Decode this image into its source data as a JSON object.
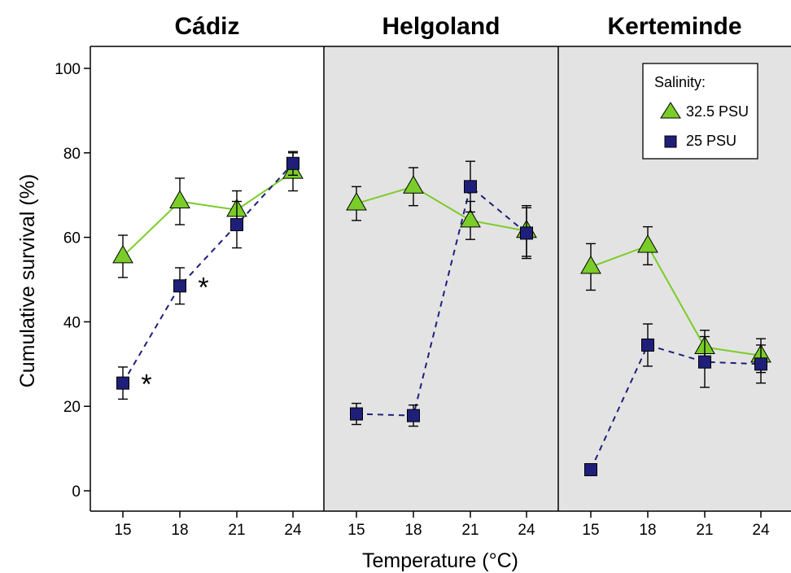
{
  "chart_data": {
    "type": "line",
    "xlabel": "Temperature (°C)",
    "ylabel": "Cumulative survival (%)",
    "ylim": [
      0,
      100
    ],
    "yticks": [
      0,
      20,
      40,
      60,
      80,
      100
    ],
    "x": [
      15,
      18,
      21,
      24
    ],
    "x_tick_labels": [
      "15",
      "18",
      "21",
      "24"
    ],
    "legend": {
      "title": "Salinity:",
      "placement": "top-right",
      "entries": [
        {
          "label": "32.5 PSU",
          "marker": "triangle",
          "line": "solid",
          "color": "#7acc29"
        },
        {
          "label": "25 PSU",
          "marker": "square",
          "line": "dashed",
          "color": "#1f1f7a"
        }
      ]
    },
    "panels": [
      {
        "title": "Cádiz",
        "background": "#ffffff",
        "series": [
          {
            "name": "32.5 PSU",
            "values": [
              55.5,
              68.5,
              66.5,
              75.5
            ],
            "errors": [
              5.0,
              5.5,
              4.5,
              4.5
            ]
          },
          {
            "name": "25 PSU",
            "values": [
              25.5,
              48.5,
              63.0,
              77.5
            ],
            "errors": [
              3.8,
              4.3,
              5.5,
              2.8
            ]
          }
        ],
        "annotations": [
          {
            "text": "*",
            "x": 15,
            "y": 25.5
          },
          {
            "text": "*",
            "x": 18,
            "y": 48.5
          }
        ]
      },
      {
        "title": "Helgoland",
        "background": "#e3e3e3",
        "series": [
          {
            "name": "32.5 PSU",
            "values": [
              68.0,
              72.0,
              64.0,
              61.5
            ],
            "errors": [
              4.0,
              4.5,
              4.5,
              6.0
            ]
          },
          {
            "name": "25 PSU",
            "values": [
              18.2,
              17.8,
              72.0,
              61.0
            ],
            "errors": [
              2.5,
              2.5,
              6.0,
              6.0
            ]
          }
        ],
        "annotations": []
      },
      {
        "title": "Kerteminde",
        "background": "#e3e3e3",
        "series": [
          {
            "name": "32.5 PSU",
            "values": [
              53.0,
              58.0,
              34.0,
              32.0
            ],
            "errors": [
              5.5,
              4.5,
              4.0,
              4.0
            ]
          },
          {
            "name": "25 PSU",
            "values": [
              5.0,
              34.5,
              30.5,
              30.0
            ],
            "errors": [
              0.0,
              5.0,
              6.0,
              4.5
            ]
          }
        ],
        "annotations": []
      }
    ]
  }
}
